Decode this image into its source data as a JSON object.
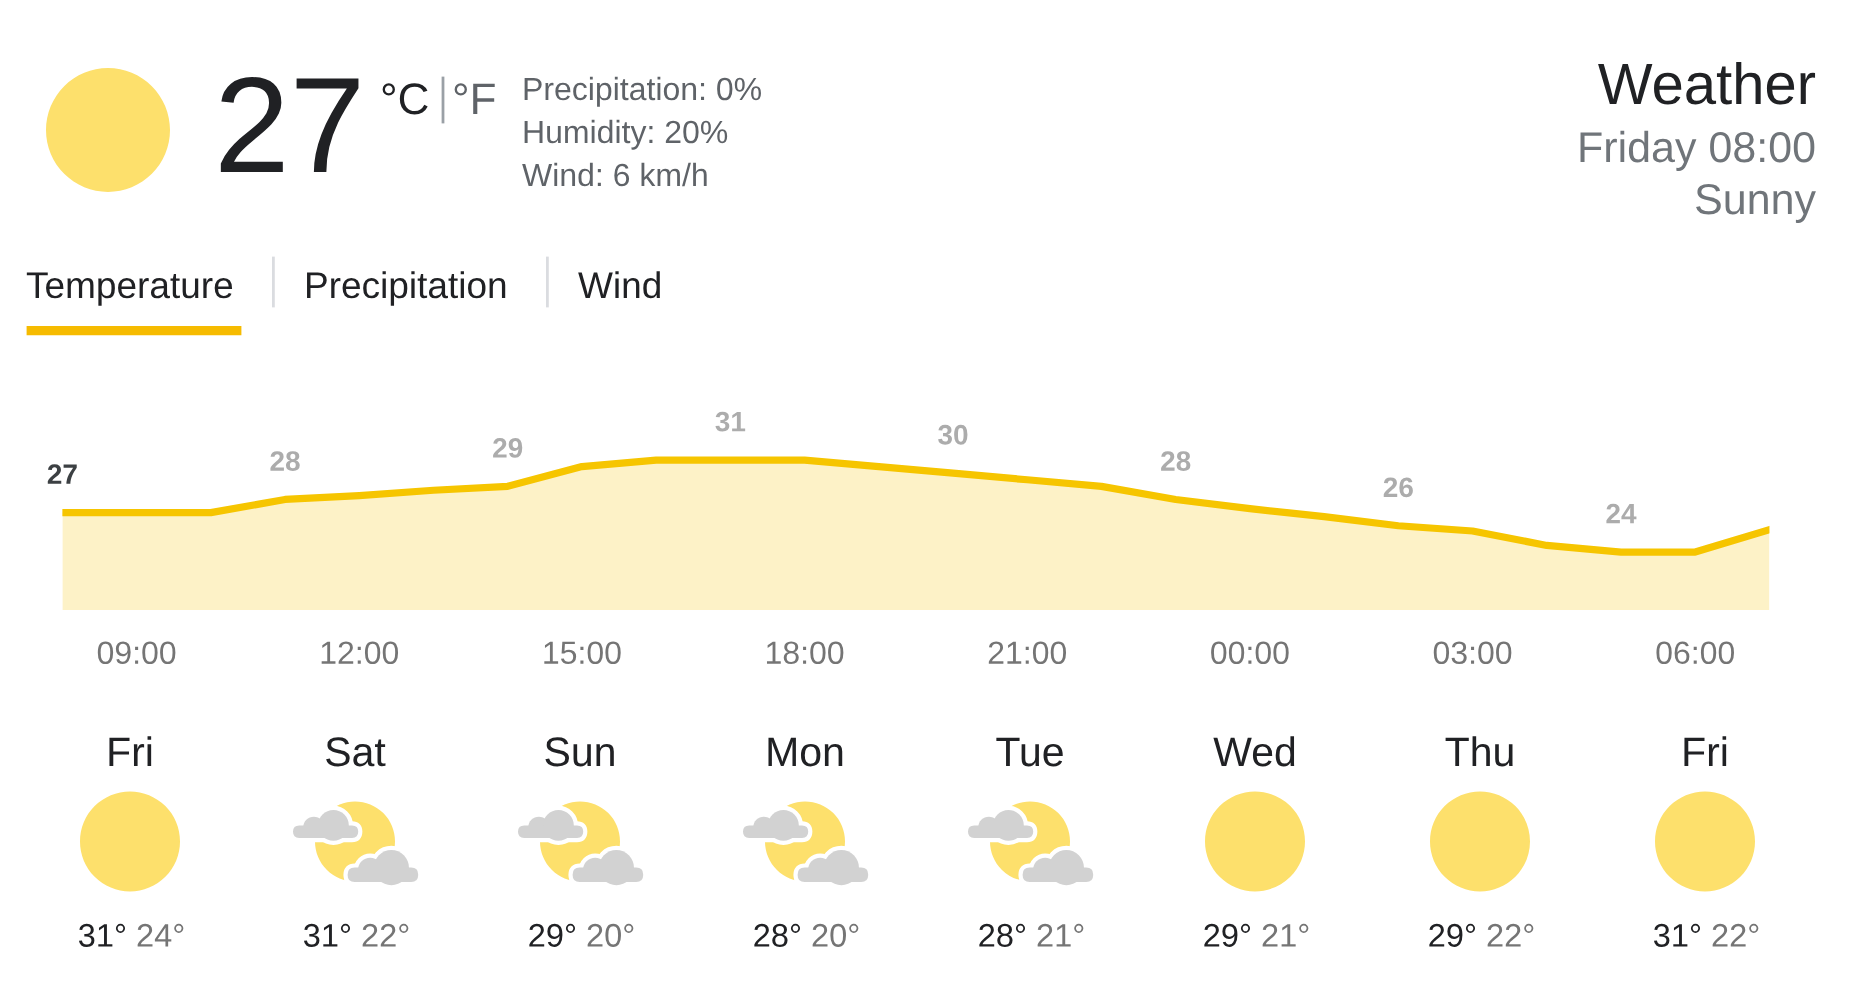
{
  "chart_data": [
    {
      "type": "other",
      "title": "Weather",
      "subtitle": "Friday 08:00",
      "annotations": [
        "27",
        "°C",
        "°F",
        "Precipitation: 0%",
        "Humidity: 20%",
        "Wind: 6 km/h",
        "Sunny",
        "Temperature",
        "Precipitation",
        "Wind"
      ]
    },
    {
      "type": "area",
      "categories": [
        null,
        "09:00",
        null,
        null,
        "12:00",
        null,
        null,
        "15:00",
        null,
        null,
        "18:00",
        null,
        null,
        "21:00",
        null,
        null,
        "00:00",
        null,
        null,
        "03:00",
        null,
        null,
        "06:00",
        null
      ],
      "series": [
        {
          "color": "#f6c500",
          "values": [
            27,
            27,
            27,
            28,
            28.3,
            28.7,
            29,
            30.5,
            31,
            31,
            31,
            30.5,
            30,
            29.5,
            29,
            28,
            27.3,
            26.7,
            26,
            25.6,
            24.5,
            24,
            24,
            25.7
          ],
          "value_labels": [
            "27",
            null,
            null,
            "28",
            null,
            null,
            "29",
            null,
            null,
            "31",
            null,
            null,
            "30",
            null,
            null,
            "28",
            null,
            null,
            "26",
            null,
            null,
            "24",
            null,
            null
          ]
        }
      ],
      "tick_labels": "x"
    },
    {
      "type": "other",
      "categories": [
        "Fri",
        "Sat",
        "Sun",
        "Mon",
        "Tue",
        "Wed",
        "Thu",
        "Fri"
      ],
      "series": [
        {
          "color": "#202124",
          "values": [
            31,
            31,
            29,
            28,
            28,
            29,
            29,
            31
          ],
          "value_labels": [
            "31°",
            "31°",
            "29°",
            "28°",
            "28°",
            "29°",
            "29°",
            "31°"
          ]
        },
        {
          "color": "#757575",
          "values": [
            24,
            22,
            20,
            20,
            21,
            21,
            22,
            22
          ],
          "value_labels": [
            "24°",
            "22°",
            "20°",
            "20°",
            "21°",
            "21°",
            "22°",
            "22°"
          ]
        }
      ]
    }
  ]
}
